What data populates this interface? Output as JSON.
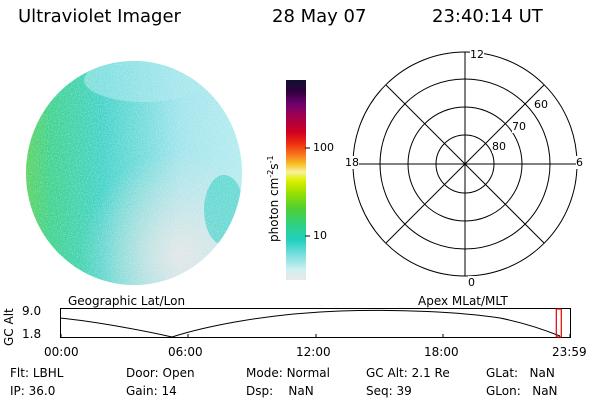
{
  "header": {
    "title": "Ultraviolet Imager",
    "date": "28 May 07",
    "time": "23:40:14 UT"
  },
  "colorbar": {
    "unit_label": "photon cm",
    "unit_exp1": "-2",
    "unit_s": "s",
    "unit_exp2": "-1",
    "tick_labels": [
      "100",
      "10"
    ]
  },
  "polar_plot": {
    "mlt_labels": [
      "12",
      "18",
      "6",
      "0"
    ],
    "mlat_labels": [
      "60",
      "70",
      "80"
    ]
  },
  "timeline": {
    "left_caption": "Geographic Lat/Lon",
    "right_caption": "Apex MLat/MLT",
    "y_axis_label": "GC Alt",
    "y_ticks": [
      "9.0",
      "1.8"
    ],
    "x_ticks": [
      "00:00",
      "06:00",
      "12:00",
      "18:00",
      "23:59"
    ],
    "current_marker_fraction": 0.985
  },
  "status": {
    "rows": [
      [
        {
          "k": "Flt:",
          "v": "LBHL"
        },
        {
          "k": "Door:",
          "v": "Open"
        },
        {
          "k": "Mode:",
          "v": "Normal"
        },
        {
          "k": "GC Alt:",
          "v": "2.1 Re"
        },
        {
          "k": "GLat:",
          "v": "NaN"
        }
      ],
      [
        {
          "k": "IP:",
          "v": "36.0"
        },
        {
          "k": "Gain:",
          "v": "14"
        },
        {
          "k": "Dsp:",
          "v": "NaN"
        },
        {
          "k": "Seq:",
          "v": "39"
        },
        {
          "k": "GLon:",
          "v": "NaN"
        }
      ]
    ]
  },
  "colors": {
    "marker": "#e00000",
    "image_green": "#3cd23c",
    "image_cyan": "#40dcc8",
    "image_lightcyan": "#b4ecf0",
    "image_gray": "#dcdcdc"
  }
}
